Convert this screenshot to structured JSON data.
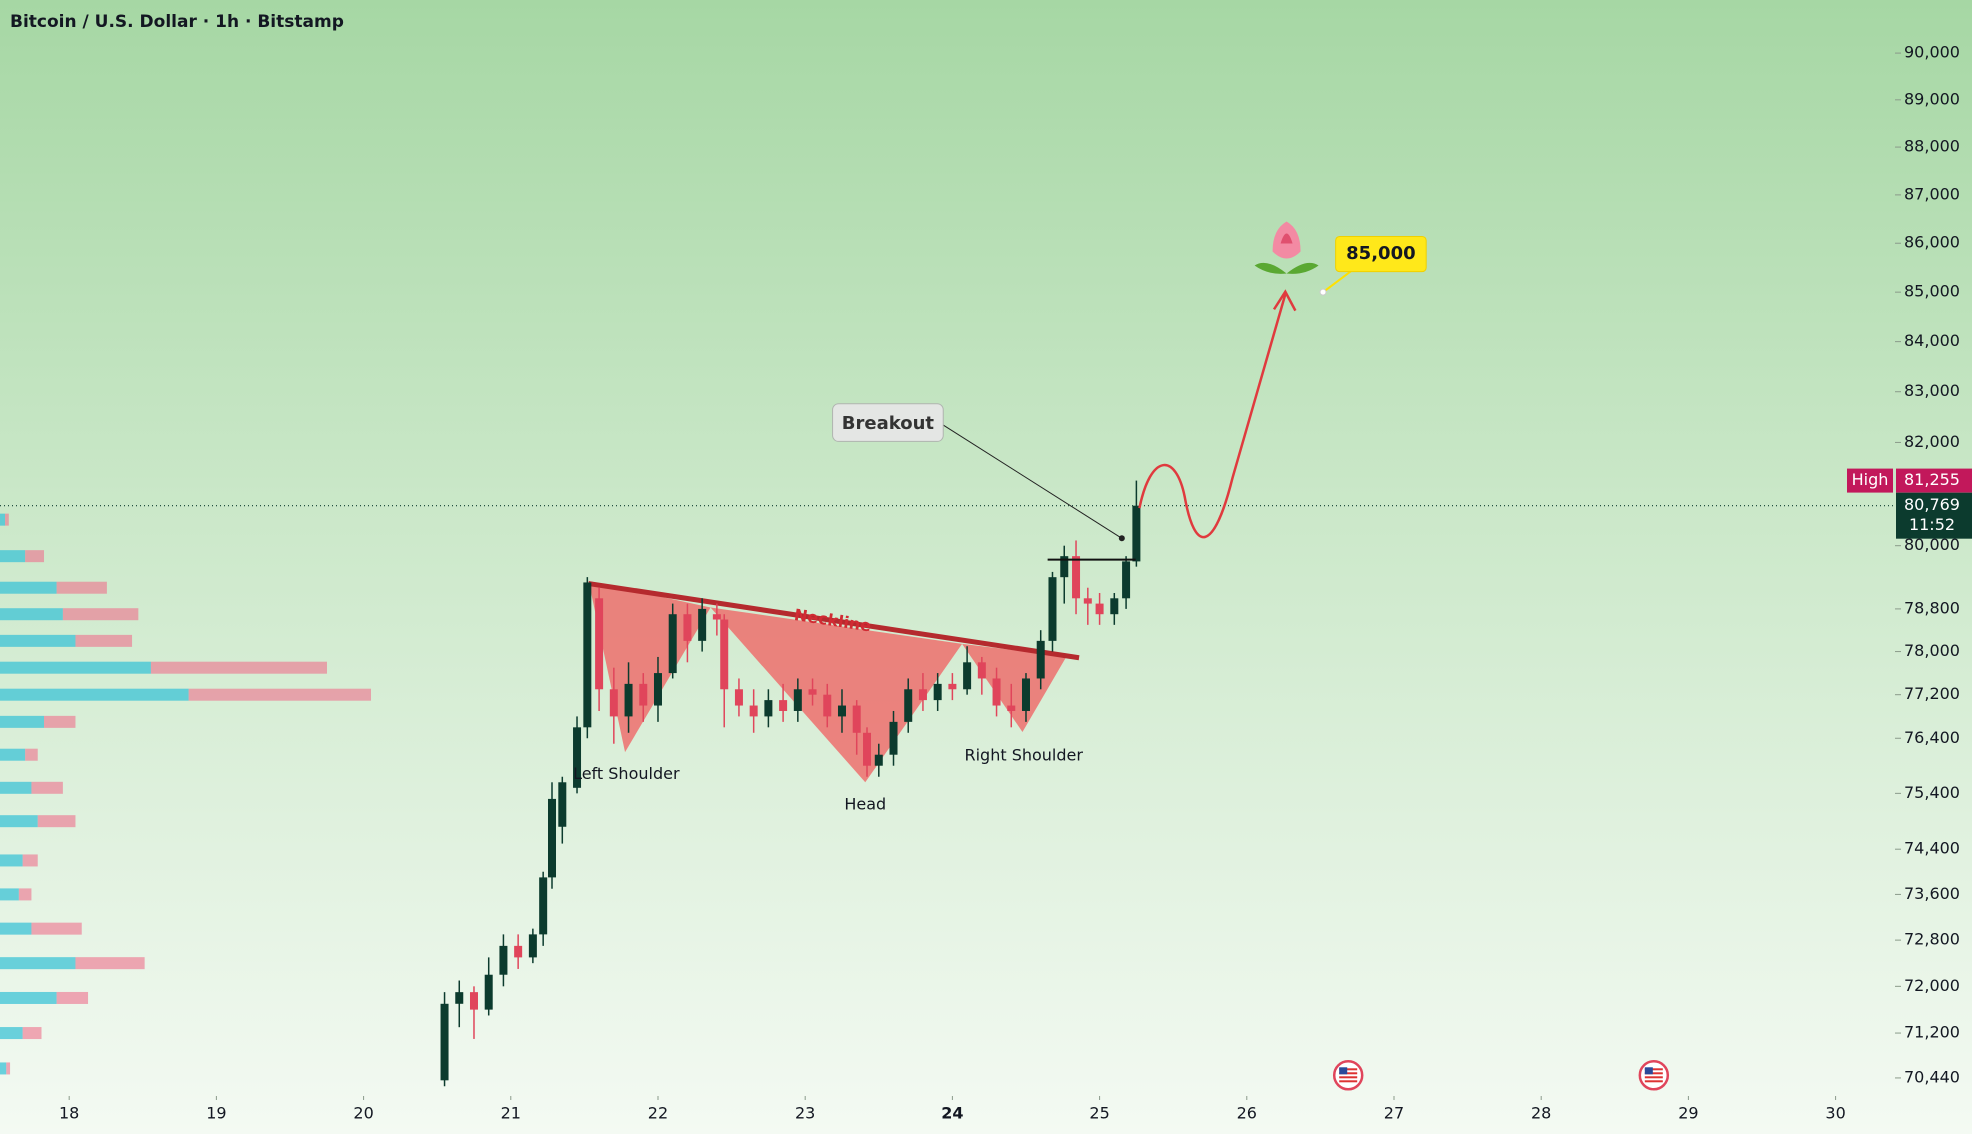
{
  "chart_data": {
    "type": "candlestick",
    "title": "Bitcoin / U.S. Dollar · 1h · Bitstamp",
    "log_scale": true,
    "xlim": [
      17.53,
      30.39
    ],
    "xticks": [
      18,
      19,
      20,
      21,
      22,
      23,
      24,
      25,
      26,
      27,
      28,
      29,
      30
    ],
    "ylim": [
      70170,
      91150
    ],
    "yticks": [
      {
        "value": 90000,
        "label": "90,000"
      },
      {
        "value": 89000,
        "label": "89,000"
      },
      {
        "value": 88000,
        "label": "88,000"
      },
      {
        "value": 87000,
        "label": "87,000"
      },
      {
        "value": 86000,
        "label": "86,000"
      },
      {
        "value": 85000,
        "label": "85,000"
      },
      {
        "value": 84000,
        "label": "84,000"
      },
      {
        "value": 83000,
        "label": "83,000"
      },
      {
        "value": 82000,
        "label": "82,000"
      },
      {
        "value": 80000,
        "label": "80,000"
      },
      {
        "value": 78800,
        "label": "78,800"
      },
      {
        "value": 78000,
        "label": "78,000"
      },
      {
        "value": 77200,
        "label": "77,200"
      },
      {
        "value": 76400,
        "label": "76,400"
      },
      {
        "value": 75400,
        "label": "75,400"
      },
      {
        "value": 74400,
        "label": "74,400"
      },
      {
        "value": 73600,
        "label": "73,600"
      },
      {
        "value": 72800,
        "label": "72,800"
      },
      {
        "value": 72000,
        "label": "72,000"
      },
      {
        "value": 71200,
        "label": "71,200"
      },
      {
        "value": 70440,
        "label": "70,440"
      }
    ],
    "up_color": "#0c3b2e",
    "down_color": "#e0455b",
    "candles": {
      "x": [
        20.55,
        20.65,
        20.75,
        20.85,
        20.95,
        21.05,
        21.15,
        21.22,
        21.28,
        21.35,
        21.45,
        21.52,
        21.6,
        21.7,
        21.8,
        21.9,
        22.0,
        22.1,
        22.2,
        22.3,
        22.4,
        22.45,
        22.55,
        22.65,
        22.75,
        22.85,
        22.95,
        23.05,
        23.15,
        23.25,
        23.35,
        23.42,
        23.5,
        23.6,
        23.7,
        23.8,
        23.9,
        24.0,
        24.1,
        24.2,
        24.3,
        24.4,
        24.5,
        24.6,
        24.68,
        24.76,
        24.84,
        24.92,
        25.0,
        25.1,
        25.18,
        25.25
      ],
      "open": [
        70400,
        71700,
        71900,
        71600,
        72200,
        72700,
        72500,
        72900,
        73900,
        74800,
        75500,
        76600,
        79000,
        77300,
        76800,
        77400,
        77000,
        77600,
        78700,
        78200,
        78700,
        78600,
        77300,
        77000,
        76800,
        77100,
        76900,
        77300,
        77200,
        76800,
        77000,
        76500,
        75900,
        76100,
        76700,
        77300,
        77100,
        77400,
        77300,
        77800,
        77500,
        77000,
        76900,
        77500,
        78200,
        79400,
        79800,
        79000,
        78900,
        78700,
        79000,
        79700
      ],
      "high": [
        71900,
        72100,
        72000,
        72500,
        72900,
        72900,
        73000,
        74000,
        75600,
        75700,
        76800,
        79400,
        79200,
        77700,
        77800,
        77600,
        77900,
        78900,
        78900,
        79000,
        78900,
        78700,
        77500,
        77300,
        77300,
        77400,
        77500,
        77500,
        77400,
        77300,
        77100,
        76600,
        76300,
        76900,
        77500,
        77600,
        77600,
        77600,
        78100,
        77900,
        77700,
        77400,
        77600,
        78400,
        79500,
        80000,
        80100,
        79200,
        79100,
        79100,
        79800,
        81255
      ],
      "low": [
        70300,
        71300,
        71100,
        71500,
        72000,
        72300,
        72400,
        72700,
        73700,
        74500,
        75400,
        76400,
        76900,
        76300,
        76500,
        76700,
        76700,
        77500,
        77800,
        78000,
        78300,
        76600,
        76800,
        76500,
        76600,
        76700,
        76700,
        77000,
        76600,
        76500,
        76100,
        75700,
        75700,
        75900,
        76500,
        76900,
        76900,
        77100,
        77200,
        77200,
        76800,
        76600,
        76700,
        77300,
        78000,
        78900,
        78700,
        78500,
        78500,
        78500,
        78800,
        79600
      ],
      "close": [
        71700,
        71900,
        71600,
        72200,
        72700,
        72500,
        72900,
        73900,
        75300,
        75600,
        76600,
        79300,
        77300,
        76800,
        77400,
        77000,
        77600,
        78700,
        78200,
        78800,
        78600,
        77300,
        77000,
        76800,
        77100,
        76900,
        77300,
        77200,
        76800,
        77000,
        76500,
        75900,
        76100,
        76700,
        77300,
        77100,
        77400,
        77300,
        77800,
        77500,
        77000,
        76900,
        77500,
        78200,
        79400,
        79800,
        79000,
        78900,
        78700,
        79000,
        79700,
        80769
      ]
    },
    "volume_profile": {
      "prices": [
        80500,
        79800,
        79200,
        78700,
        78200,
        77700,
        77200,
        76700,
        76100,
        75500,
        74900,
        74200,
        73600,
        73000,
        72400,
        71800,
        71200,
        70600
      ],
      "buy": [
        4,
        20,
        45,
        50,
        60,
        120,
        150,
        35,
        20,
        25,
        30,
        18,
        15,
        25,
        60,
        45,
        18,
        5
      ],
      "sell": [
        3,
        15,
        40,
        60,
        45,
        140,
        145,
        25,
        10,
        25,
        30,
        12,
        10,
        40,
        55,
        25,
        15,
        3
      ]
    },
    "annotations": [
      "Breakout",
      "Neckline",
      "Left Shoulder",
      "Head",
      "Right Shoulder"
    ],
    "target": {
      "value": 85000,
      "label": "85,000"
    },
    "high": {
      "name": "High",
      "value": 81255,
      "label": "81,255"
    },
    "last_price": {
      "value": 80769,
      "label": "80,769",
      "countdown": "11:52"
    }
  }
}
